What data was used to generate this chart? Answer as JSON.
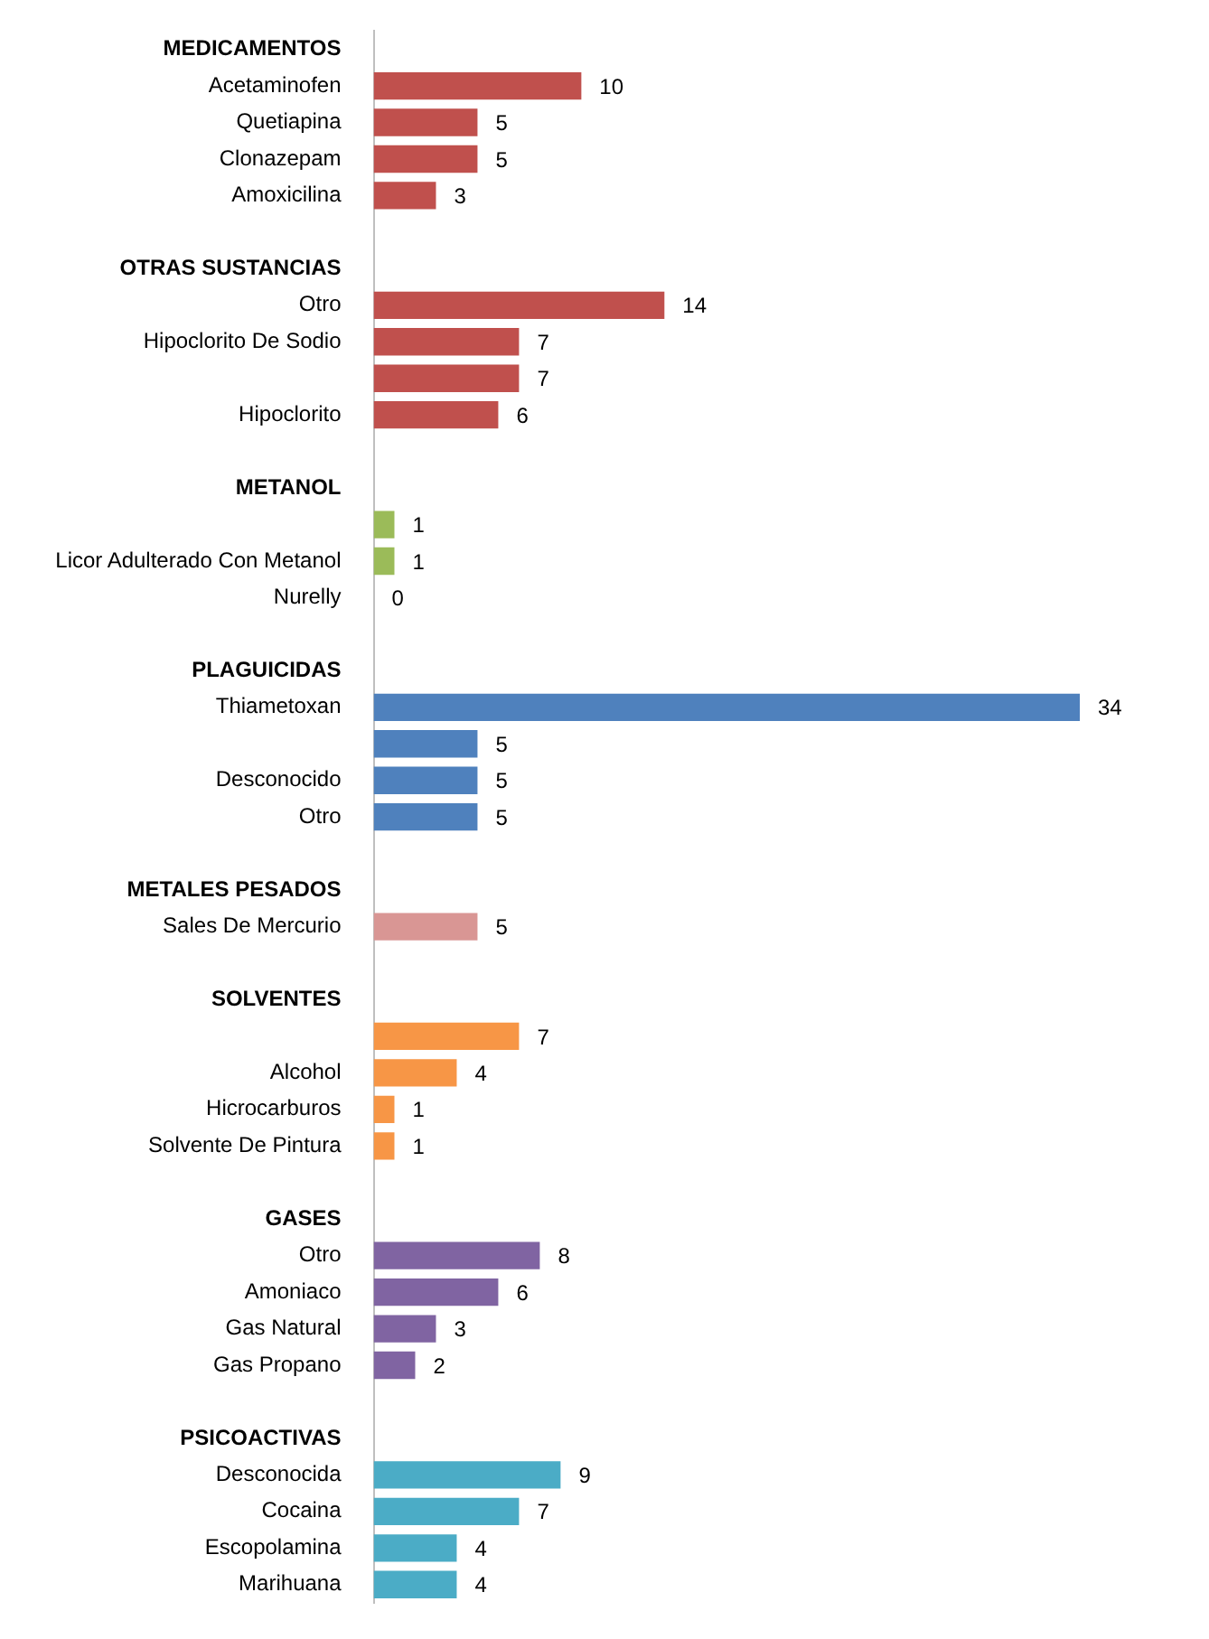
{
  "chart_data": {
    "type": "bar",
    "orientation": "horizontal",
    "tick_labels": "y",
    "data_labels": true,
    "categories": [
      "MEDICAMENTOS",
      "Acetaminofen",
      "Quetiapina",
      "Clonazepam",
      "Amoxicilina",
      null,
      "OTRAS SUSTANCIAS",
      "Otro",
      "Hipoclorito De Sodio",
      null,
      "Hipoclorito",
      null,
      "METANOL",
      null,
      "Licor Adulterado Con Metanol",
      "Nurelly",
      null,
      "PLAGUICIDAS",
      "Thiametoxan",
      null,
      "Desconocido",
      "Otro",
      null,
      "METALES PESADOS",
      "Sales De Mercurio",
      null,
      "SOLVENTES",
      null,
      "Alcohol",
      "Hicrocarburos",
      "Solvente De Pintura",
      null,
      "GASES",
      "Otro",
      "Amoniaco",
      "Gas Natural",
      "Gas Propano",
      null,
      "PSICOACTIVAS",
      "Desconocida",
      "Cocaina",
      "Escopolamina",
      "Marihuana"
    ],
    "values": [
      null,
      10,
      5,
      5,
      3,
      null,
      null,
      14,
      7,
      7,
      6,
      null,
      null,
      1,
      1,
      0,
      null,
      null,
      34,
      5,
      5,
      5,
      null,
      null,
      5,
      null,
      null,
      7,
      4,
      1,
      1,
      null,
      null,
      8,
      6,
      3,
      2,
      null,
      null,
      9,
      7,
      4,
      4
    ],
    "colors": [
      null,
      "#c0504d",
      "#c0504d",
      "#c0504d",
      "#c0504d",
      null,
      null,
      "#c0504d",
      "#c0504d",
      "#c0504d",
      "#c0504d",
      null,
      null,
      "#9bbb59",
      "#9bbb59",
      "#9bbb59",
      null,
      null,
      "#4f81bd",
      "#4f81bd",
      "#4f81bd",
      "#4f81bd",
      null,
      null,
      "#d99694",
      null,
      null,
      "#f79646",
      "#f79646",
      "#f79646",
      "#f79646",
      null,
      null,
      "#8064a2",
      "#8064a2",
      "#8064a2",
      "#8064a2",
      null,
      null,
      "#4bacc6",
      "#4bacc6",
      "#4bacc6",
      "#4bacc6"
    ]
  }
}
